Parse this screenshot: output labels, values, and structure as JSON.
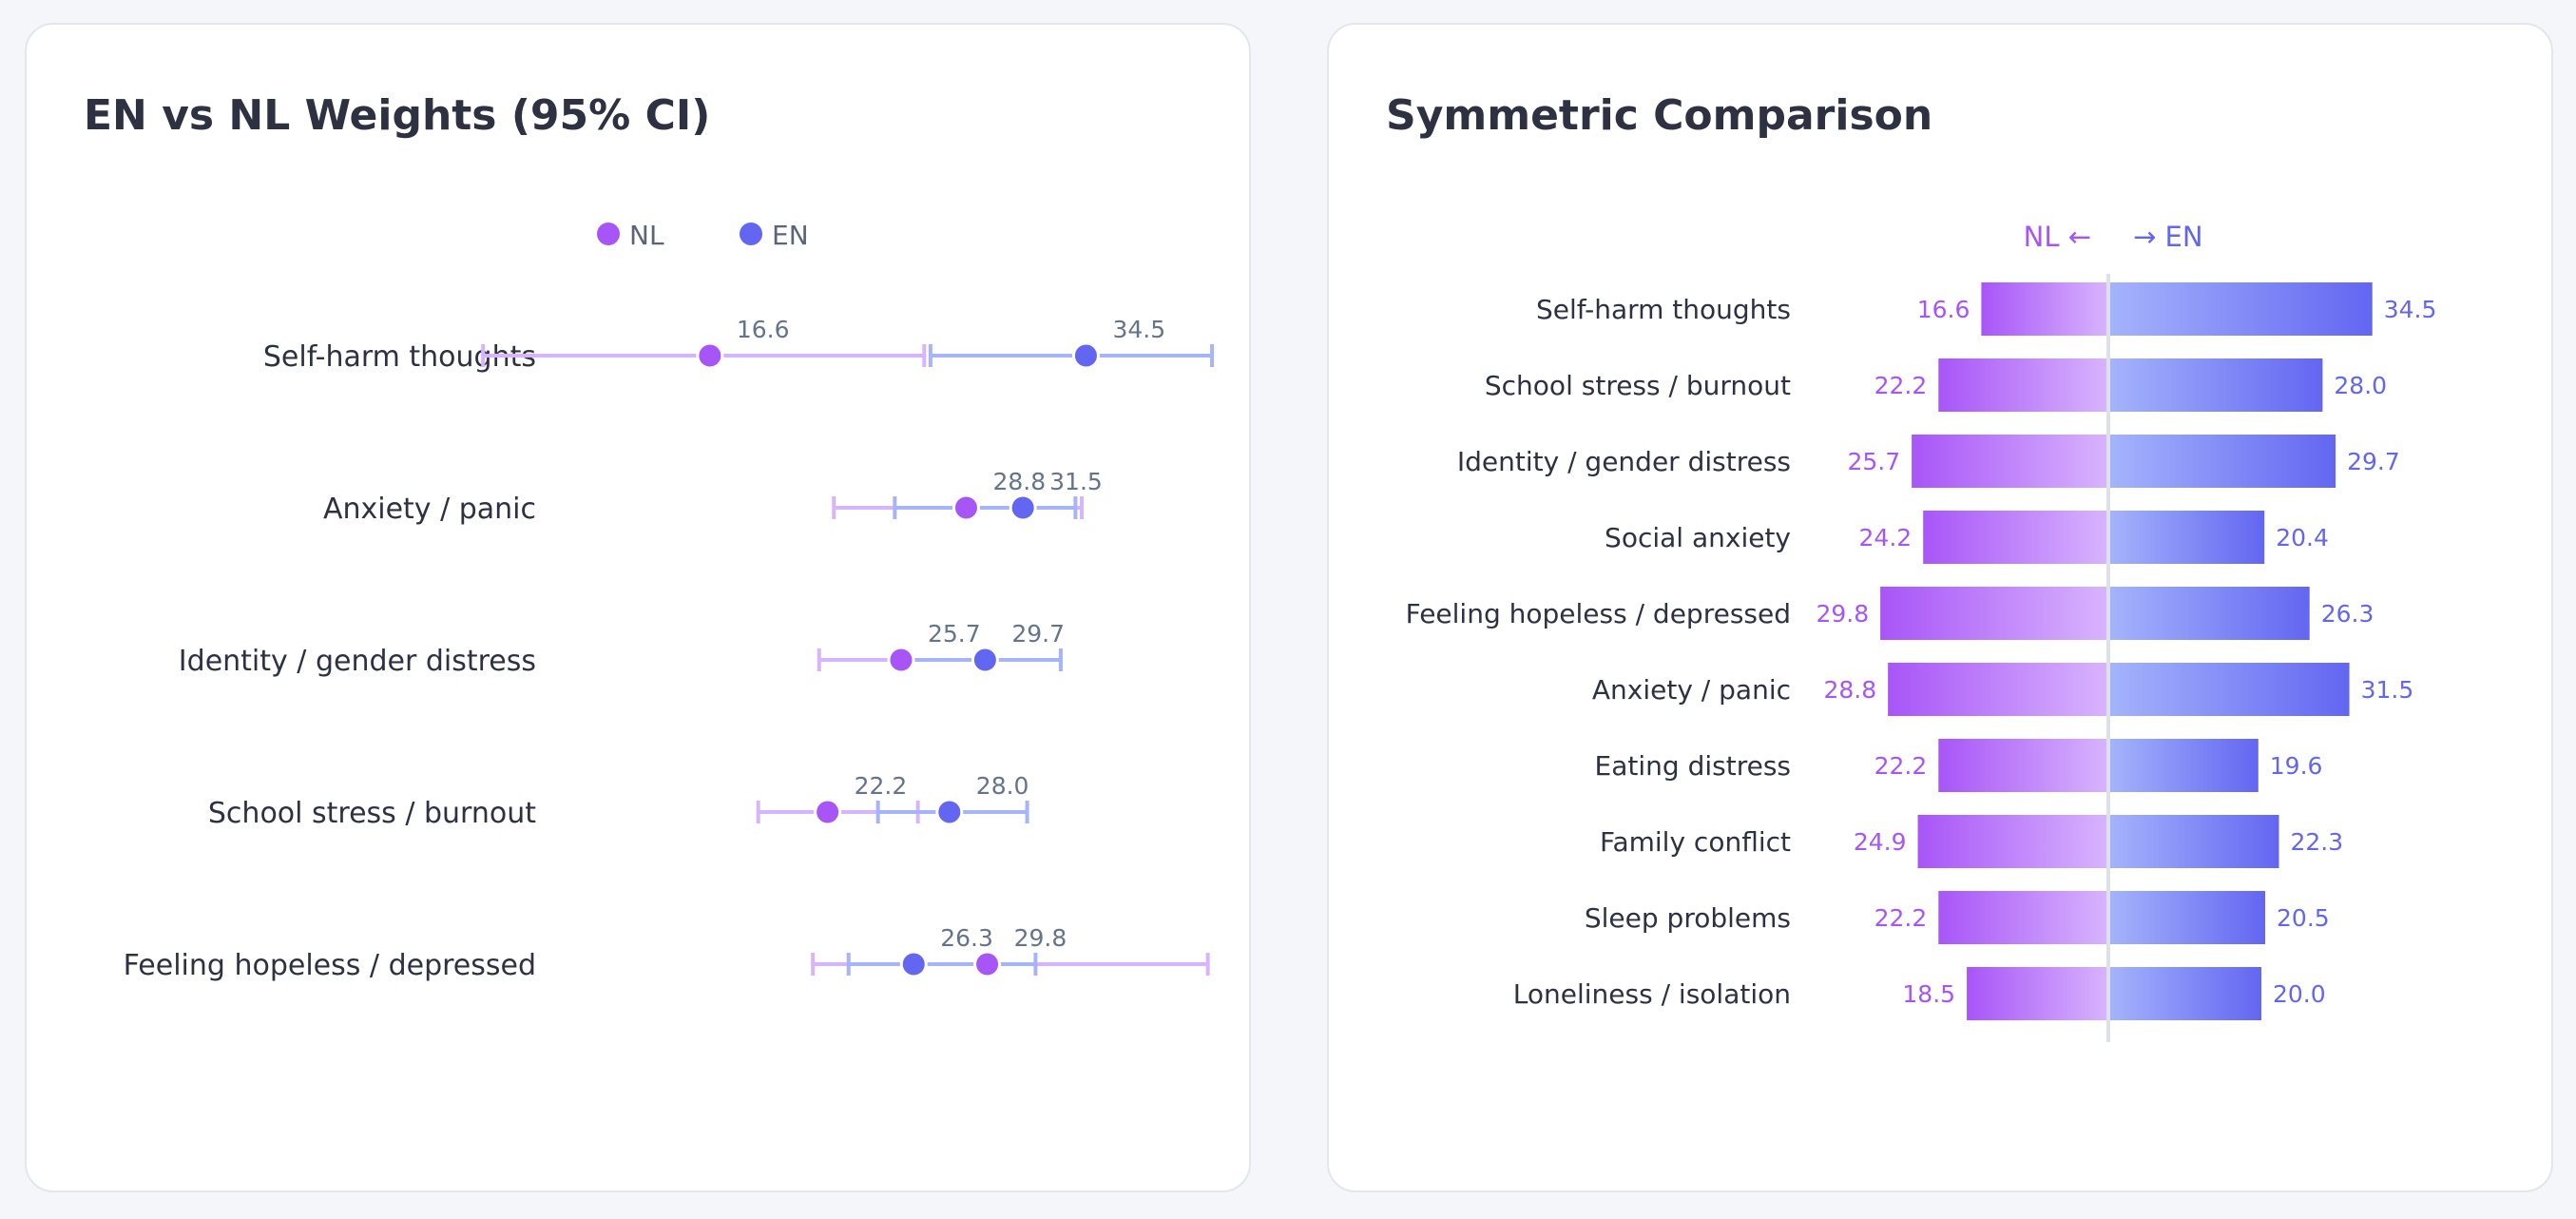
{
  "colors": {
    "nl": "#a855f7",
    "nl_light": "#d8b4fe",
    "en": "#6366f1",
    "en_light": "#a5b4fc",
    "text": "#2d3142",
    "value_text": "#64748b"
  },
  "panels": {
    "left_title": "EN vs NL Weights (95% CI)",
    "right_title": "Symmetric Comparison"
  },
  "chart_data": [
    {
      "type": "dot-ci",
      "title": "EN vs NL Weights (95% CI)",
      "legend": [
        "NL",
        "EN"
      ],
      "legend_position": "top-center",
      "xlim": [
        5,
        45
      ],
      "categories": [
        "Self-harm thoughts",
        "Anxiety / panic",
        "Identity / gender distress",
        "School stress / burnout",
        "Feeling hopeless / depressed"
      ],
      "series": [
        {
          "name": "NL",
          "values": [
            16.6,
            28.8,
            25.7,
            22.2,
            29.8
          ],
          "ci_low": [
            5.8,
            22.5,
            21.8,
            18.9,
            21.5
          ],
          "ci_high": [
            26.8,
            34.3,
            29.8,
            26.5,
            40.3
          ]
        },
        {
          "name": "EN",
          "values": [
            34.5,
            31.5,
            29.7,
            28.0,
            26.3
          ],
          "ci_low": [
            27.1,
            25.4,
            25.7,
            24.6,
            23.2
          ],
          "ci_high": [
            40.5,
            34.0,
            33.3,
            31.7,
            32.1
          ]
        }
      ]
    },
    {
      "type": "bar",
      "orientation": "diverging",
      "title": "Symmetric Comparison",
      "left_label": "NL ←",
      "right_label": "→ EN",
      "categories": [
        "Self-harm thoughts",
        "School stress / burnout",
        "Identity / gender distress",
        "Social anxiety",
        "Feeling hopeless / depressed",
        "Anxiety / panic",
        "Eating distress",
        "Family conflict",
        "Sleep problems",
        "Loneliness / isolation"
      ],
      "series": [
        {
          "name": "NL",
          "values": [
            16.6,
            22.2,
            25.7,
            24.2,
            29.8,
            28.8,
            22.2,
            24.9,
            22.2,
            18.5
          ]
        },
        {
          "name": "EN",
          "values": [
            34.5,
            28.0,
            29.7,
            20.4,
            26.3,
            31.5,
            19.6,
            22.3,
            20.5,
            20.0
          ]
        }
      ]
    }
  ]
}
